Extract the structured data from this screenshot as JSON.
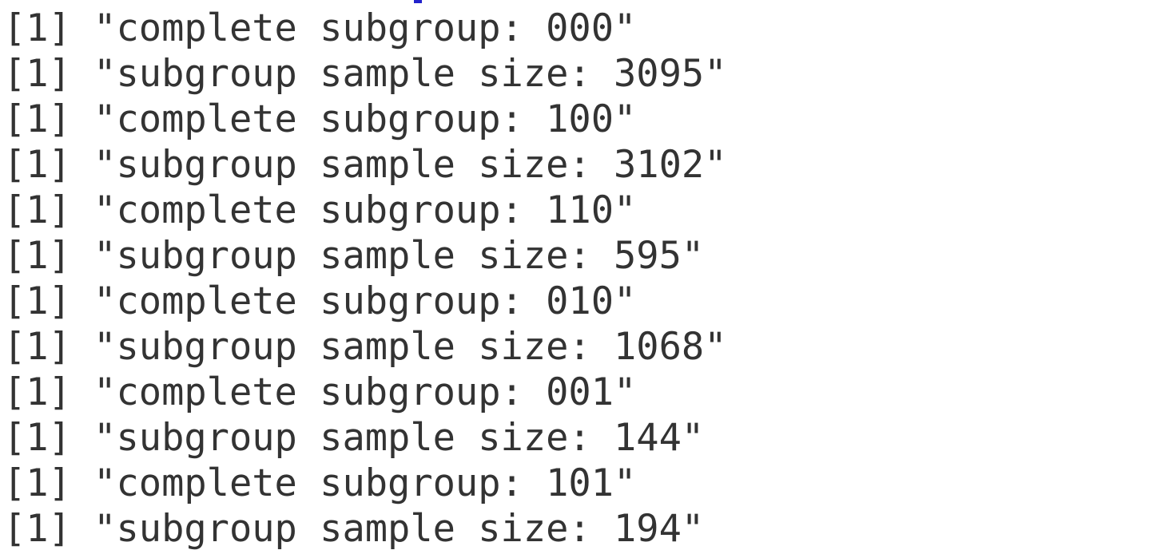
{
  "console": {
    "lines": [
      "[1] \"complete subgroup: 000\"",
      "[1] \"subgroup sample size: 3095\"",
      "[1] \"complete subgroup: 100\"",
      "[1] \"subgroup sample size: 3102\"",
      "[1] \"complete subgroup: 110\"",
      "[1] \"subgroup sample size: 595\"",
      "[1] \"complete subgroup: 010\"",
      "[1] \"subgroup sample size: 1068\"",
      "[1] \"complete subgroup: 001\"",
      "[1] \"subgroup sample size: 144\"",
      "[1] \"complete subgroup: 101\"",
      "[1] \"subgroup sample size: 194\""
    ]
  }
}
